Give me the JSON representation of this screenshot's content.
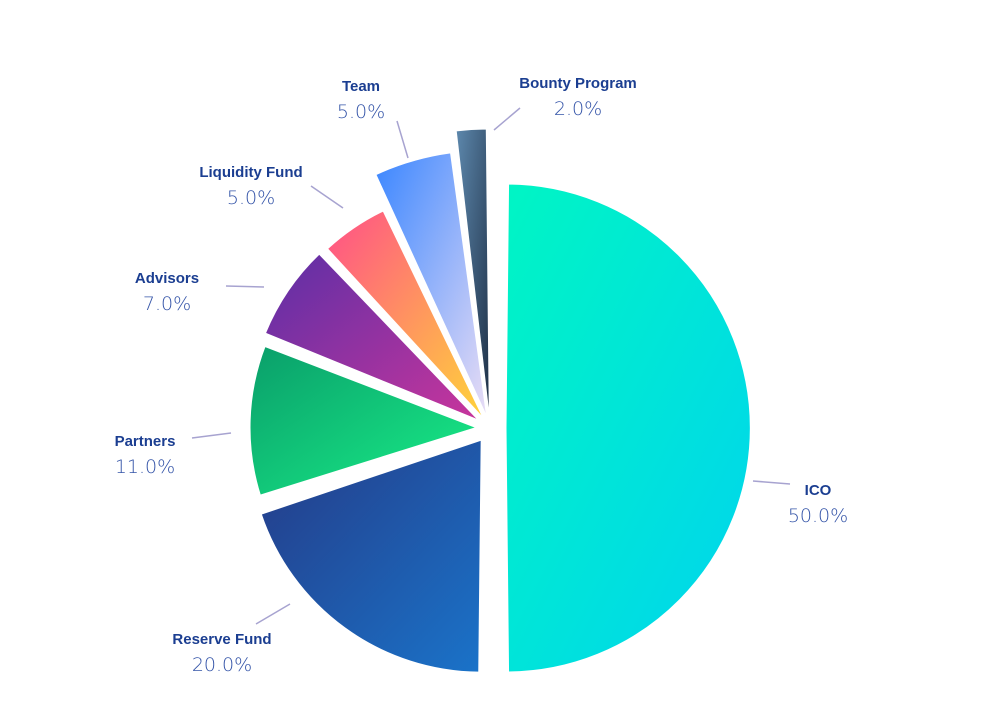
{
  "chart_data": {
    "type": "pie",
    "title": "",
    "slices": [
      {
        "label": "ICO",
        "value": 50.0,
        "value_text": "50.0%",
        "color_from": "#00f5c4",
        "color_to": "#00d4ee"
      },
      {
        "label": "Reserve Fund",
        "value": 20.0,
        "value_text": "20.0%",
        "color_from": "#253a86",
        "color_to": "#1a73c9"
      },
      {
        "label": "Partners",
        "value": 11.0,
        "value_text": "11.0%",
        "color_from": "#0a9e6a",
        "color_to": "#19ef88"
      },
      {
        "label": "Advisors",
        "value": 7.0,
        "value_text": "7.0%",
        "color_from": "#5b2fa6",
        "color_to": "#c8359c"
      },
      {
        "label": "Liquidity Fund",
        "value": 5.0,
        "value_text": "5.0%",
        "color_from": "#ff4f88",
        "color_to": "#ffd43a"
      },
      {
        "label": "Team",
        "value": 5.0,
        "value_text": "5.0%",
        "color_from": "#3a86ff",
        "color_to": "#e9ddf5"
      },
      {
        "label": "Bounty Program",
        "value": 2.0,
        "value_text": "2.0%",
        "color_from": "#5d88ad",
        "color_to": "#1e2f45"
      }
    ],
    "label_color": "#1b3e91",
    "pct_color": "#3454a8",
    "leader_color": "#a7a3d0"
  }
}
